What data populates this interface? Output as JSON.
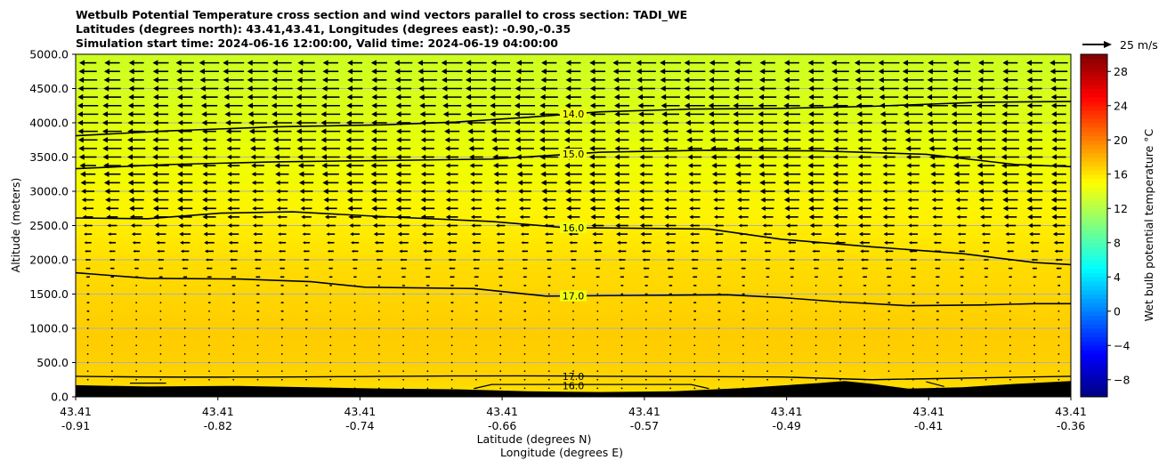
{
  "title": {
    "line1": "Wetbulb Potential Temperature cross section and wind vectors parallel to cross section: TADI_WE",
    "line2": "Latitudes (degrees north): 43.41,43.41, Longitudes (degrees east): -0.90,-0.35",
    "line3": "Simulation start time: 2024-06-16 12:00:00, Valid time: 2024-06-19 04:00:00"
  },
  "chart_data": {
    "type": "contour-cross-section",
    "ylabel": "Altitude (meters)",
    "xlabel_lat": "Latitude (degrees N)",
    "xlabel_lon": "Longitude (degrees E)",
    "ylim": [
      0,
      5000
    ],
    "yticks": [
      "0.0",
      "500.0",
      "1000.0",
      "1500.0",
      "2000.0",
      "2500.0",
      "3000.0",
      "3500.0",
      "4000.0",
      "4500.0",
      "5000.0"
    ],
    "xticks": [
      {
        "lat": "43.41",
        "lon": "-0.91"
      },
      {
        "lat": "43.41",
        "lon": "-0.82"
      },
      {
        "lat": "43.41",
        "lon": "-0.74"
      },
      {
        "lat": "43.41",
        "lon": "-0.66"
      },
      {
        "lat": "43.41",
        "lon": "-0.57"
      },
      {
        "lat": "43.41",
        "lon": "-0.49"
      },
      {
        "lat": "43.41",
        "lon": "-0.41"
      },
      {
        "lat": "43.41",
        "lon": "-0.36"
      }
    ],
    "xrange": [
      -0.91,
      -0.36
    ],
    "grid": "horizontal",
    "contours": [
      {
        "label": "14.0",
        "points": [
          [
            -0.91,
            3810
          ],
          [
            -0.86,
            3880
          ],
          [
            -0.8,
            3940
          ],
          [
            -0.74,
            3970
          ],
          [
            -0.7,
            4010
          ],
          [
            -0.66,
            4080
          ],
          [
            -0.62,
            4160
          ],
          [
            -0.57,
            4200
          ],
          [
            -0.52,
            4210
          ],
          [
            -0.47,
            4240
          ],
          [
            -0.41,
            4300
          ],
          [
            -0.36,
            4310
          ]
        ]
      },
      {
        "label": "15.0",
        "points": [
          [
            -0.91,
            3330
          ],
          [
            -0.86,
            3390
          ],
          [
            -0.8,
            3430
          ],
          [
            -0.74,
            3450
          ],
          [
            -0.68,
            3470
          ],
          [
            -0.62,
            3570
          ],
          [
            -0.56,
            3600
          ],
          [
            -0.5,
            3590
          ],
          [
            -0.44,
            3540
          ],
          [
            -0.39,
            3390
          ],
          [
            -0.36,
            3360
          ]
        ]
      },
      {
        "label": "16.0",
        "points": [
          [
            -0.91,
            2610
          ],
          [
            -0.87,
            2600
          ],
          [
            -0.83,
            2680
          ],
          [
            -0.79,
            2700
          ],
          [
            -0.74,
            2630
          ],
          [
            -0.68,
            2560
          ],
          [
            -0.64,
            2470
          ],
          [
            -0.6,
            2460
          ],
          [
            -0.56,
            2450
          ],
          [
            -0.52,
            2300
          ],
          [
            -0.47,
            2190
          ],
          [
            -0.42,
            2090
          ],
          [
            -0.38,
            1960
          ],
          [
            -0.36,
            1930
          ]
        ]
      },
      {
        "label": "17.0",
        "points": [
          [
            -0.91,
            1810
          ],
          [
            -0.87,
            1730
          ],
          [
            -0.82,
            1720
          ],
          [
            -0.78,
            1680
          ],
          [
            -0.75,
            1600
          ],
          [
            -0.69,
            1580
          ],
          [
            -0.65,
            1470
          ],
          [
            -0.6,
            1480
          ],
          [
            -0.55,
            1490
          ],
          [
            -0.52,
            1450
          ],
          [
            -0.49,
            1390
          ],
          [
            -0.45,
            1330
          ],
          [
            -0.41,
            1340
          ],
          [
            -0.38,
            1360
          ],
          [
            -0.36,
            1360
          ]
        ]
      }
    ],
    "near_surface_labels": [
      "17.0",
      "16.0"
    ],
    "vectors": {
      "reference_label": "25 m/s",
      "reference_speed_ms": 25,
      "direction": "mostly westward aloft, weak near surface"
    },
    "colorbar": {
      "label": "Wet bulb potential temperature °C",
      "range": [
        -10,
        30
      ],
      "ticks": [
        "−8",
        "−4",
        "0",
        "4",
        "8",
        "12",
        "16",
        "20",
        "24",
        "28"
      ]
    }
  }
}
